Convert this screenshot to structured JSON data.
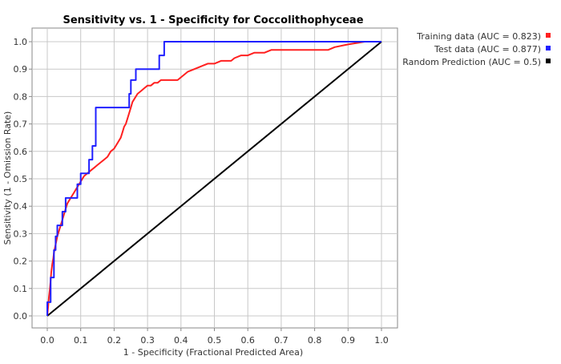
{
  "chart_data": {
    "type": "line",
    "title": "Sensitivity vs. 1 - Specificity for Coccolithophyceae",
    "xlabel": "1 - Specificity  (Fractional Predicted Area)",
    "ylabel": "Sensitivity  (1 - Omission Rate)",
    "xlim": [
      0,
      1
    ],
    "ylim": [
      0,
      1
    ],
    "grid": true,
    "legend_position": "right",
    "x_ticks": [
      "0.0",
      "0.1",
      "0.2",
      "0.3",
      "0.4",
      "0.5",
      "0.6",
      "0.7",
      "0.8",
      "0.9",
      "1.0"
    ],
    "y_ticks": [
      "0.0",
      "0.1",
      "0.2",
      "0.3",
      "0.4",
      "0.5",
      "0.6",
      "0.7",
      "0.8",
      "0.9",
      "1.0"
    ],
    "series": [
      {
        "name": "Training data (AUC = 0.823)",
        "color": "#ff2020",
        "x": [
          0.0,
          0.003,
          0.005,
          0.008,
          0.01,
          0.012,
          0.015,
          0.018,
          0.02,
          0.025,
          0.03,
          0.035,
          0.04,
          0.045,
          0.05,
          0.055,
          0.06,
          0.065,
          0.07,
          0.075,
          0.08,
          0.085,
          0.09,
          0.1,
          0.11,
          0.12,
          0.13,
          0.14,
          0.15,
          0.16,
          0.17,
          0.18,
          0.19,
          0.2,
          0.21,
          0.22,
          0.225,
          0.23,
          0.235,
          0.24,
          0.245,
          0.25,
          0.255,
          0.26,
          0.27,
          0.28,
          0.29,
          0.3,
          0.31,
          0.32,
          0.33,
          0.34,
          0.35,
          0.37,
          0.39,
          0.41,
          0.42,
          0.44,
          0.46,
          0.48,
          0.5,
          0.52,
          0.55,
          0.56,
          0.58,
          0.6,
          0.62,
          0.65,
          0.67,
          0.7,
          0.75,
          0.8,
          0.84,
          0.86,
          0.9,
          0.95,
          1.0
        ],
        "y": [
          0.0,
          0.04,
          0.07,
          0.1,
          0.13,
          0.16,
          0.19,
          0.21,
          0.23,
          0.26,
          0.29,
          0.31,
          0.33,
          0.35,
          0.37,
          0.39,
          0.41,
          0.42,
          0.43,
          0.44,
          0.45,
          0.46,
          0.47,
          0.49,
          0.51,
          0.52,
          0.53,
          0.54,
          0.55,
          0.56,
          0.57,
          0.58,
          0.6,
          0.61,
          0.63,
          0.65,
          0.67,
          0.69,
          0.7,
          0.72,
          0.74,
          0.76,
          0.78,
          0.79,
          0.81,
          0.82,
          0.83,
          0.84,
          0.84,
          0.85,
          0.85,
          0.86,
          0.86,
          0.86,
          0.86,
          0.88,
          0.89,
          0.9,
          0.91,
          0.92,
          0.92,
          0.93,
          0.93,
          0.94,
          0.95,
          0.95,
          0.96,
          0.96,
          0.97,
          0.97,
          0.97,
          0.97,
          0.97,
          0.98,
          0.99,
          1.0,
          1.0
        ]
      },
      {
        "name": "Test data (AUC = 0.877)",
        "color": "#2020ff",
        "x": [
          0.0,
          0.0,
          0.01,
          0.01,
          0.02,
          0.02,
          0.025,
          0.025,
          0.03,
          0.03,
          0.045,
          0.045,
          0.055,
          0.055,
          0.065,
          0.065,
          0.09,
          0.09,
          0.1,
          0.1,
          0.12,
          0.12,
          0.125,
          0.125,
          0.135,
          0.135,
          0.145,
          0.145,
          0.245,
          0.245,
          0.25,
          0.25,
          0.255,
          0.255,
          0.265,
          0.265,
          0.335,
          0.335,
          0.35,
          0.35,
          1.0
        ],
        "y": [
          0.0,
          0.05,
          0.05,
          0.14,
          0.14,
          0.24,
          0.24,
          0.29,
          0.29,
          0.33,
          0.33,
          0.38,
          0.38,
          0.43,
          0.43,
          0.43,
          0.43,
          0.48,
          0.48,
          0.52,
          0.52,
          0.52,
          0.52,
          0.57,
          0.57,
          0.62,
          0.62,
          0.76,
          0.76,
          0.81,
          0.81,
          0.86,
          0.86,
          0.86,
          0.86,
          0.9,
          0.9,
          0.95,
          0.95,
          1.0,
          1.0
        ]
      },
      {
        "name": "Random Prediction (AUC = 0.5)",
        "color": "#000000",
        "x": [
          0.0,
          1.0
        ],
        "y": [
          0.0,
          1.0
        ]
      }
    ]
  }
}
